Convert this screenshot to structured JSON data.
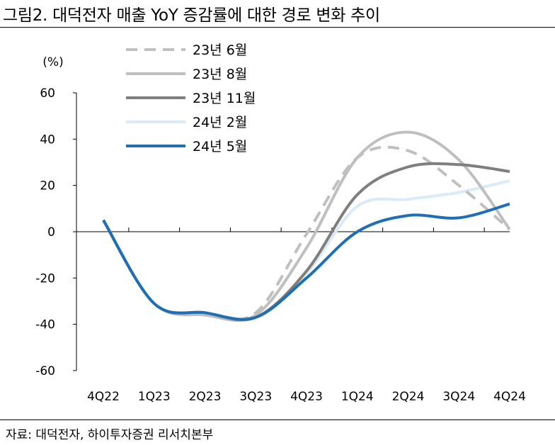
{
  "title": "그림2. 대덕전자 매출 YoY 증감률에 대한 경로 변화 추이",
  "source": "자료: 대덕전자, 하이투자증권 리서치본부",
  "chart_data": {
    "type": "line",
    "ylabel": "(%)",
    "ylim": [
      -60,
      60
    ],
    "yticks": [
      60,
      40,
      20,
      0,
      -20,
      -40,
      -60
    ],
    "categories": [
      "4Q22",
      "1Q23",
      "2Q23",
      "3Q23",
      "4Q23",
      "1Q24",
      "2Q24",
      "3Q24",
      "4Q24"
    ],
    "series": [
      {
        "name": "23년 6월",
        "color": "#c0c0c0",
        "dash": true,
        "values": [
          5,
          -31,
          -36,
          -35,
          -1,
          32,
          35,
          20,
          1
        ]
      },
      {
        "name": "23년 8월",
        "color": "#bfbfbf",
        "dash": false,
        "values": [
          5,
          -31,
          -36,
          -36,
          -7,
          32,
          43,
          31,
          1
        ]
      },
      {
        "name": "23년 11월",
        "color": "#7f7f7f",
        "dash": false,
        "values": [
          5,
          -31,
          -35,
          -37,
          -17,
          16,
          28,
          29,
          26
        ]
      },
      {
        "name": "24년 2월",
        "color": "#d9ebf7",
        "dash": false,
        "values": [
          5,
          -31,
          -35,
          -37,
          -18,
          11,
          14,
          17,
          22
        ]
      },
      {
        "name": "24년 5월",
        "color": "#1f6fb5",
        "dash": false,
        "values": [
          5,
          -31,
          -35,
          -37,
          -20,
          0,
          7,
          6,
          12
        ]
      }
    ]
  }
}
